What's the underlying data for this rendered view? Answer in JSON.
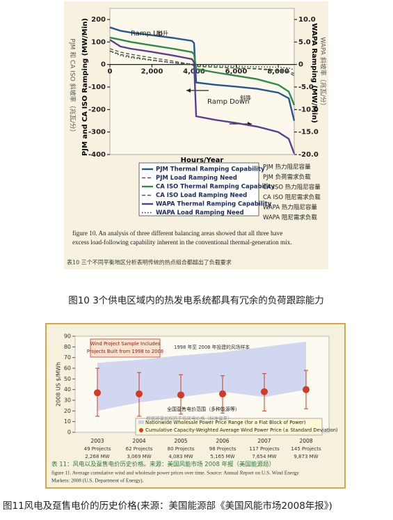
{
  "chart_data": [
    {
      "type": "line",
      "x": [
        0,
        500,
        1000,
        2000,
        3000,
        3900,
        4000,
        4100,
        5000,
        6000,
        7000,
        8000,
        8500,
        8760
      ],
      "xlim": [
        0,
        8760
      ],
      "xticks": [
        0,
        {
          "value": 2000,
          "label": "2,000"
        },
        {
          "value": 4000,
          "label": "4,000"
        },
        {
          "value": 6000,
          "label": "6,000"
        },
        {
          "value": 8000,
          "label": "8,000"
        }
      ],
      "ylim": [
        -400,
        200
      ],
      "yticks": [
        200,
        100,
        0,
        -100,
        -200,
        -300,
        -400
      ],
      "y2lim": [
        -20,
        10
      ],
      "y2ticks": [
        {
          "value": 10,
          "label": "10.0"
        },
        {
          "value": 5,
          "label": "5.0"
        },
        0,
        {
          "value": -5,
          "label": "-5.0"
        },
        {
          "value": -10,
          "label": "-10.0"
        },
        {
          "value": -15,
          "label": "-15.0"
        },
        {
          "value": -20,
          "label": "-20.0"
        }
      ],
      "x_label": "Hours/Year",
      "y_label": "PJM and CA ISO Ramping (MW/Min)",
      "y_label_zh": "PJM 和 CA ISO 斜坡率（兆瓦/分）",
      "y2_label": "WAPA Ramping (MW/Min)",
      "y2_label_zh": "WAPA 斜坡率（兆瓦/分）",
      "annotations": [
        "Ramp Up",
        "斜升",
        "Ramp Down",
        "斜降"
      ],
      "series": [
        {
          "name": "PJM Thermal Ramping Capability",
          "name_zh": "PJM 热力阻尼容量",
          "color": "#27568f",
          "style": "solid",
          "values": [
            165,
            150,
            142,
            130,
            118,
            105,
            95,
            -80,
            -90,
            -98,
            -108,
            -125,
            -150,
            -250
          ]
        },
        {
          "name": "PJM Load Ramping Need",
          "name_zh": "PJM 负荷需求负载",
          "color": "#555555",
          "style": "dashed",
          "values": [
            70,
            55,
            45,
            30,
            15,
            0,
            -5,
            -8,
            -12,
            -15,
            -20,
            -28,
            -35,
            -50
          ]
        },
        {
          "name": "CA ISO Thermal Ramping Capability",
          "name_zh": "CA ISO 热力阻尼容量",
          "color": "#2f8a45",
          "style": "solid",
          "values": [
            120,
            110,
            100,
            85,
            70,
            55,
            45,
            -20,
            -35,
            -50,
            -65,
            -90,
            -120,
            -180
          ]
        },
        {
          "name": "CA ISO Load Ramping Need",
          "name_zh": "CA ISO 阻尼需求负载",
          "color": "#3a6a3a",
          "style": "dashed",
          "values": [
            60,
            45,
            35,
            20,
            8,
            -2,
            -6,
            -9,
            -12,
            -15,
            -18,
            -24,
            -30,
            -40
          ]
        },
        {
          "name": "WAPA Thermal Ramping Capability",
          "name_zh": "WAPA 热力阻尼容量",
          "color": "#5b3f8f",
          "style": "solid",
          "axis": "y2",
          "values": [
            5.5,
            4.0,
            3.5,
            2.8,
            2.0,
            1.2,
            0.5,
            -11.5,
            -12.3,
            -13.0,
            -13.8,
            -15.0,
            -16.5,
            -19.8
          ]
        },
        {
          "name": "WAPA Load Ramping Need",
          "name_zh": "WAPA 阻尼需求负载",
          "color": "#333333",
          "style": "dotted",
          "axis": "y2",
          "values": [
            3.0,
            2.0,
            1.5,
            0.9,
            0.4,
            0.1,
            0,
            -0.2,
            -0.3,
            -0.4,
            -0.5,
            -0.6,
            -0.8,
            -1.2
          ]
        }
      ],
      "caption": [
        "figure 10. An analysis of three different balancing areas showed that all three have",
        "excess load-following capability inherent in the conventional thermal-generation mix."
      ],
      "caption_zh": "表10 三个不同平衡地区分析表明传统的热点组合都超出了负载要求",
      "heading": "图10 3个供电区域内的热发电系统都具有冗余的负荷跟踪能力"
    },
    {
      "type": "errorbar",
      "categories": [
        "2003",
        "2004",
        "2005",
        "2006",
        "2007",
        "2008"
      ],
      "projects": [
        "49 Projects",
        "62 Projects",
        "80 Projects",
        "98 Projects",
        "117 Projects",
        "145 Projects"
      ],
      "capacity": [
        "2,268 MW",
        "3,069 MW",
        "4,083 MW",
        "5,165 MW",
        "7,654 MW",
        "9,873 MW"
      ],
      "ylim": [
        0,
        90
      ],
      "yticks": [
        0,
        10,
        20,
        30,
        40,
        50,
        60,
        70,
        80,
        90
      ],
      "y_label": "2008 US $/MWh",
      "note": [
        "Wind Project Sample Includes",
        "Projects Built from 1998 to 2008"
      ],
      "note_zh": "1998 年至 2008 年投建的风场样本",
      "band_zh": "全国趸售电价范围（多种能源等）",
      "series_zh": "根据容量加权的平均风电价格（标准偏差）",
      "band": {
        "name": "Nationwide Wholesale Power Price Range (for a Flat Block of Power)",
        "color": "#c9d0f0",
        "low": [
          20,
          28,
          33,
          38,
          33,
          40
        ],
        "high": [
          65,
          68,
          72,
          75,
          80,
          85
        ]
      },
      "series": [
        {
          "name": "Cumulative Capacity-Weighted Average Wind Power Price (± Standard Deviation)",
          "color": "#d23a25",
          "values": [
            37,
            36,
            35,
            36,
            38,
            40
          ],
          "low": [
            15,
            15,
            17,
            18,
            20,
            22
          ],
          "high": [
            60,
            56,
            54,
            53,
            55,
            58
          ]
        }
      ],
      "caption": [
        "figure 11. Average cumulative wind and wholesale power prices over time. Source: Annual Report on U.S. Wind Energy",
        "Markets: 2008 (U.S. Department of Energy)."
      ],
      "caption_zh": "表 11：风电以及趸售电价历史价格。来源：美国风能市场 2008 年报（美国能源局）",
      "heading": "图11风电及趸售电价的历史价格(来源：美国能源部《美国风能市场2008年报》)"
    }
  ]
}
